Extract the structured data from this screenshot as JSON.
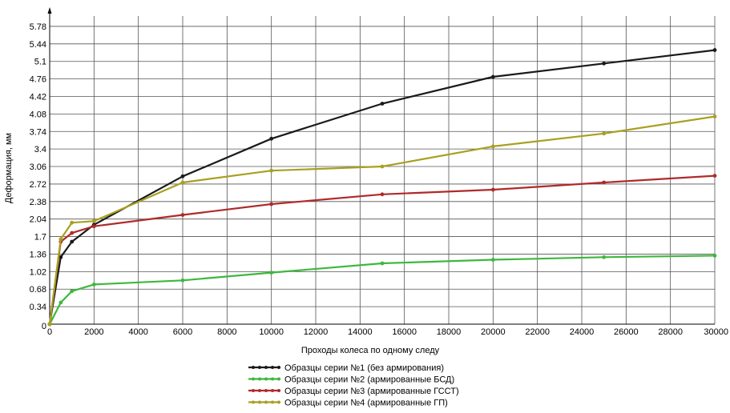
{
  "chart_data": {
    "type": "line",
    "title": "",
    "xlabel": "Проходы колеса по одному следу",
    "ylabel": "Деформация, мм",
    "xlim": [
      0,
      30000
    ],
    "ylim": [
      0,
      6.0
    ],
    "x_ticks": [
      0,
      2000,
      4000,
      6000,
      8000,
      10000,
      12000,
      14000,
      16000,
      18000,
      20000,
      22000,
      24000,
      26000,
      28000,
      30000
    ],
    "x_tick_labels": [
      "0",
      "2000",
      "4000",
      "6000",
      "8000",
      "10000",
      "12000",
      "14000",
      "16000",
      "18000",
      "20000",
      "22000",
      "24000",
      "26000",
      "28000",
      "30000"
    ],
    "y_ticks": [
      0.34,
      0.68,
      1.02,
      1.36,
      1.7,
      2.04,
      2.38,
      2.72,
      3.06,
      3.4,
      3.74,
      4.08,
      4.42,
      4.76,
      5.1,
      5.44,
      5.78
    ],
    "y_tick_labels": [
      "0.34",
      "0.68",
      "1.02",
      "1.36",
      "1.7",
      "2.04",
      "2.38",
      "2.72",
      "3.06",
      "3.4",
      "3.74",
      "4.08",
      "4.42",
      "4.76",
      "5.1",
      "5.44",
      "5.78"
    ],
    "y_origin_label": "0",
    "grid": true,
    "legend_position": "bottom-center",
    "series": [
      {
        "name": "Образцы серии №1 (без армирования)",
        "color": "#1a1a1a",
        "x": [
          0,
          500,
          1000,
          2000,
          6000,
          10000,
          15000,
          20000,
          25000,
          30000
        ],
        "y": [
          0,
          1.3,
          1.6,
          1.93,
          2.87,
          3.6,
          4.28,
          4.8,
          5.06,
          5.32
        ]
      },
      {
        "name": "Образцы серии №2 (армированные БСД)",
        "color": "#3db83d",
        "x": [
          0,
          500,
          1000,
          2000,
          6000,
          10000,
          15000,
          20000,
          25000,
          30000
        ],
        "y": [
          0,
          0.42,
          0.64,
          0.77,
          0.85,
          1.0,
          1.18,
          1.25,
          1.3,
          1.33
        ]
      },
      {
        "name": "Образцы серии №3 (армированные ГССТ)",
        "color": "#b02a2a",
        "x": [
          0,
          500,
          1000,
          2000,
          6000,
          10000,
          15000,
          20000,
          25000,
          30000
        ],
        "y": [
          0,
          1.6,
          1.77,
          1.9,
          2.12,
          2.33,
          2.52,
          2.61,
          2.75,
          2.88
        ]
      },
      {
        "name": "Образцы серии №4 (армированные ГП)",
        "color": "#a8a020",
        "x": [
          0,
          500,
          1000,
          2000,
          6000,
          10000,
          15000,
          20000,
          25000,
          30000
        ],
        "y": [
          0,
          1.65,
          1.97,
          2.0,
          2.75,
          2.98,
          3.06,
          3.45,
          3.7,
          4.03
        ]
      }
    ]
  }
}
